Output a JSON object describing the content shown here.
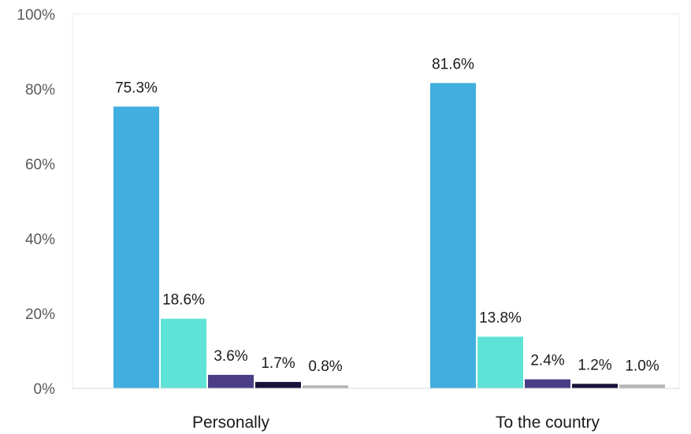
{
  "chart_data": {
    "type": "bar",
    "categories": [
      "Personally",
      "To the country"
    ],
    "series": [
      {
        "values": [
          75.3,
          81.6
        ],
        "labels": [
          "75.3%",
          "81.6%"
        ],
        "color": "#41aee0"
      },
      {
        "values": [
          18.6,
          13.8
        ],
        "labels": [
          "18.6%",
          "13.8%"
        ],
        "color": "#5fe3d6"
      },
      {
        "values": [
          3.6,
          2.4
        ],
        "labels": [
          "3.6%",
          "2.4%"
        ],
        "color": "#4a3d86"
      },
      {
        "values": [
          1.7,
          1.2
        ],
        "labels": [
          "1.7%",
          "1.2%"
        ],
        "color": "#16123a"
      },
      {
        "values": [
          0.8,
          1.0
        ],
        "labels": [
          "0.8%",
          "1.0%"
        ],
        "color": "#b5b5b5"
      }
    ],
    "yticks": [
      {
        "value": 0,
        "label": "0%"
      },
      {
        "value": 20,
        "label": "20%"
      },
      {
        "value": 40,
        "label": "40%"
      },
      {
        "value": 60,
        "label": "60%"
      },
      {
        "value": 80,
        "label": "80%"
      },
      {
        "value": 100,
        "label": "100%"
      }
    ],
    "ylim": [
      0,
      100
    ],
    "grid": false,
    "legend": "none"
  }
}
